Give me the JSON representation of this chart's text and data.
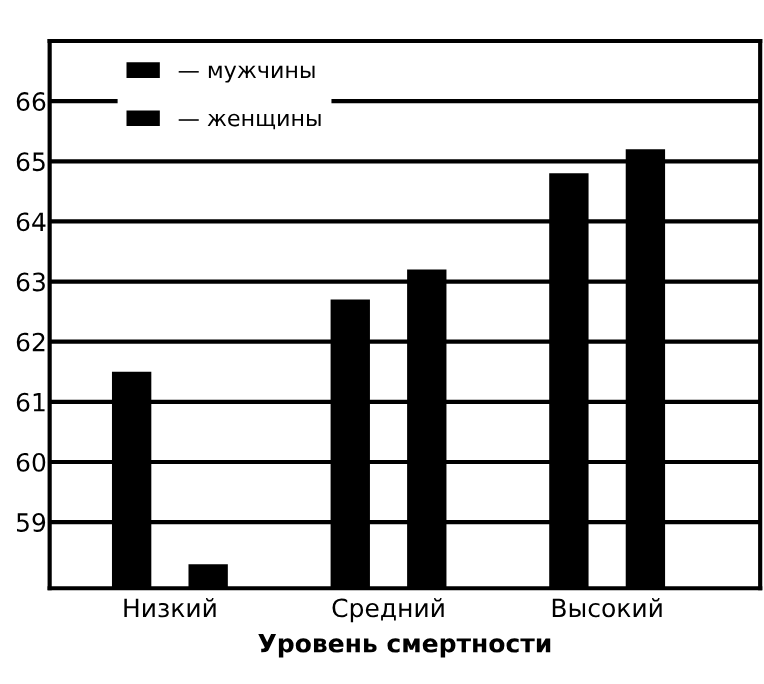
{
  "chart_data": {
    "type": "bar",
    "xlabel": "Уровень смертности",
    "categories": [
      "Низкий",
      "Средний",
      "Высокий"
    ],
    "series": [
      {
        "name": "— мужчины",
        "color": "#000000",
        "values": [
          61.5,
          62.7,
          64.8
        ]
      },
      {
        "name": "— женщины",
        "color": "#000000",
        "values": [
          58.3,
          63.2,
          65.2
        ]
      }
    ],
    "ylim": [
      57.9,
      67
    ],
    "yticks": [
      59,
      60,
      61,
      62,
      63,
      64,
      65,
      66
    ],
    "grid": "y",
    "legend": "top left"
  }
}
